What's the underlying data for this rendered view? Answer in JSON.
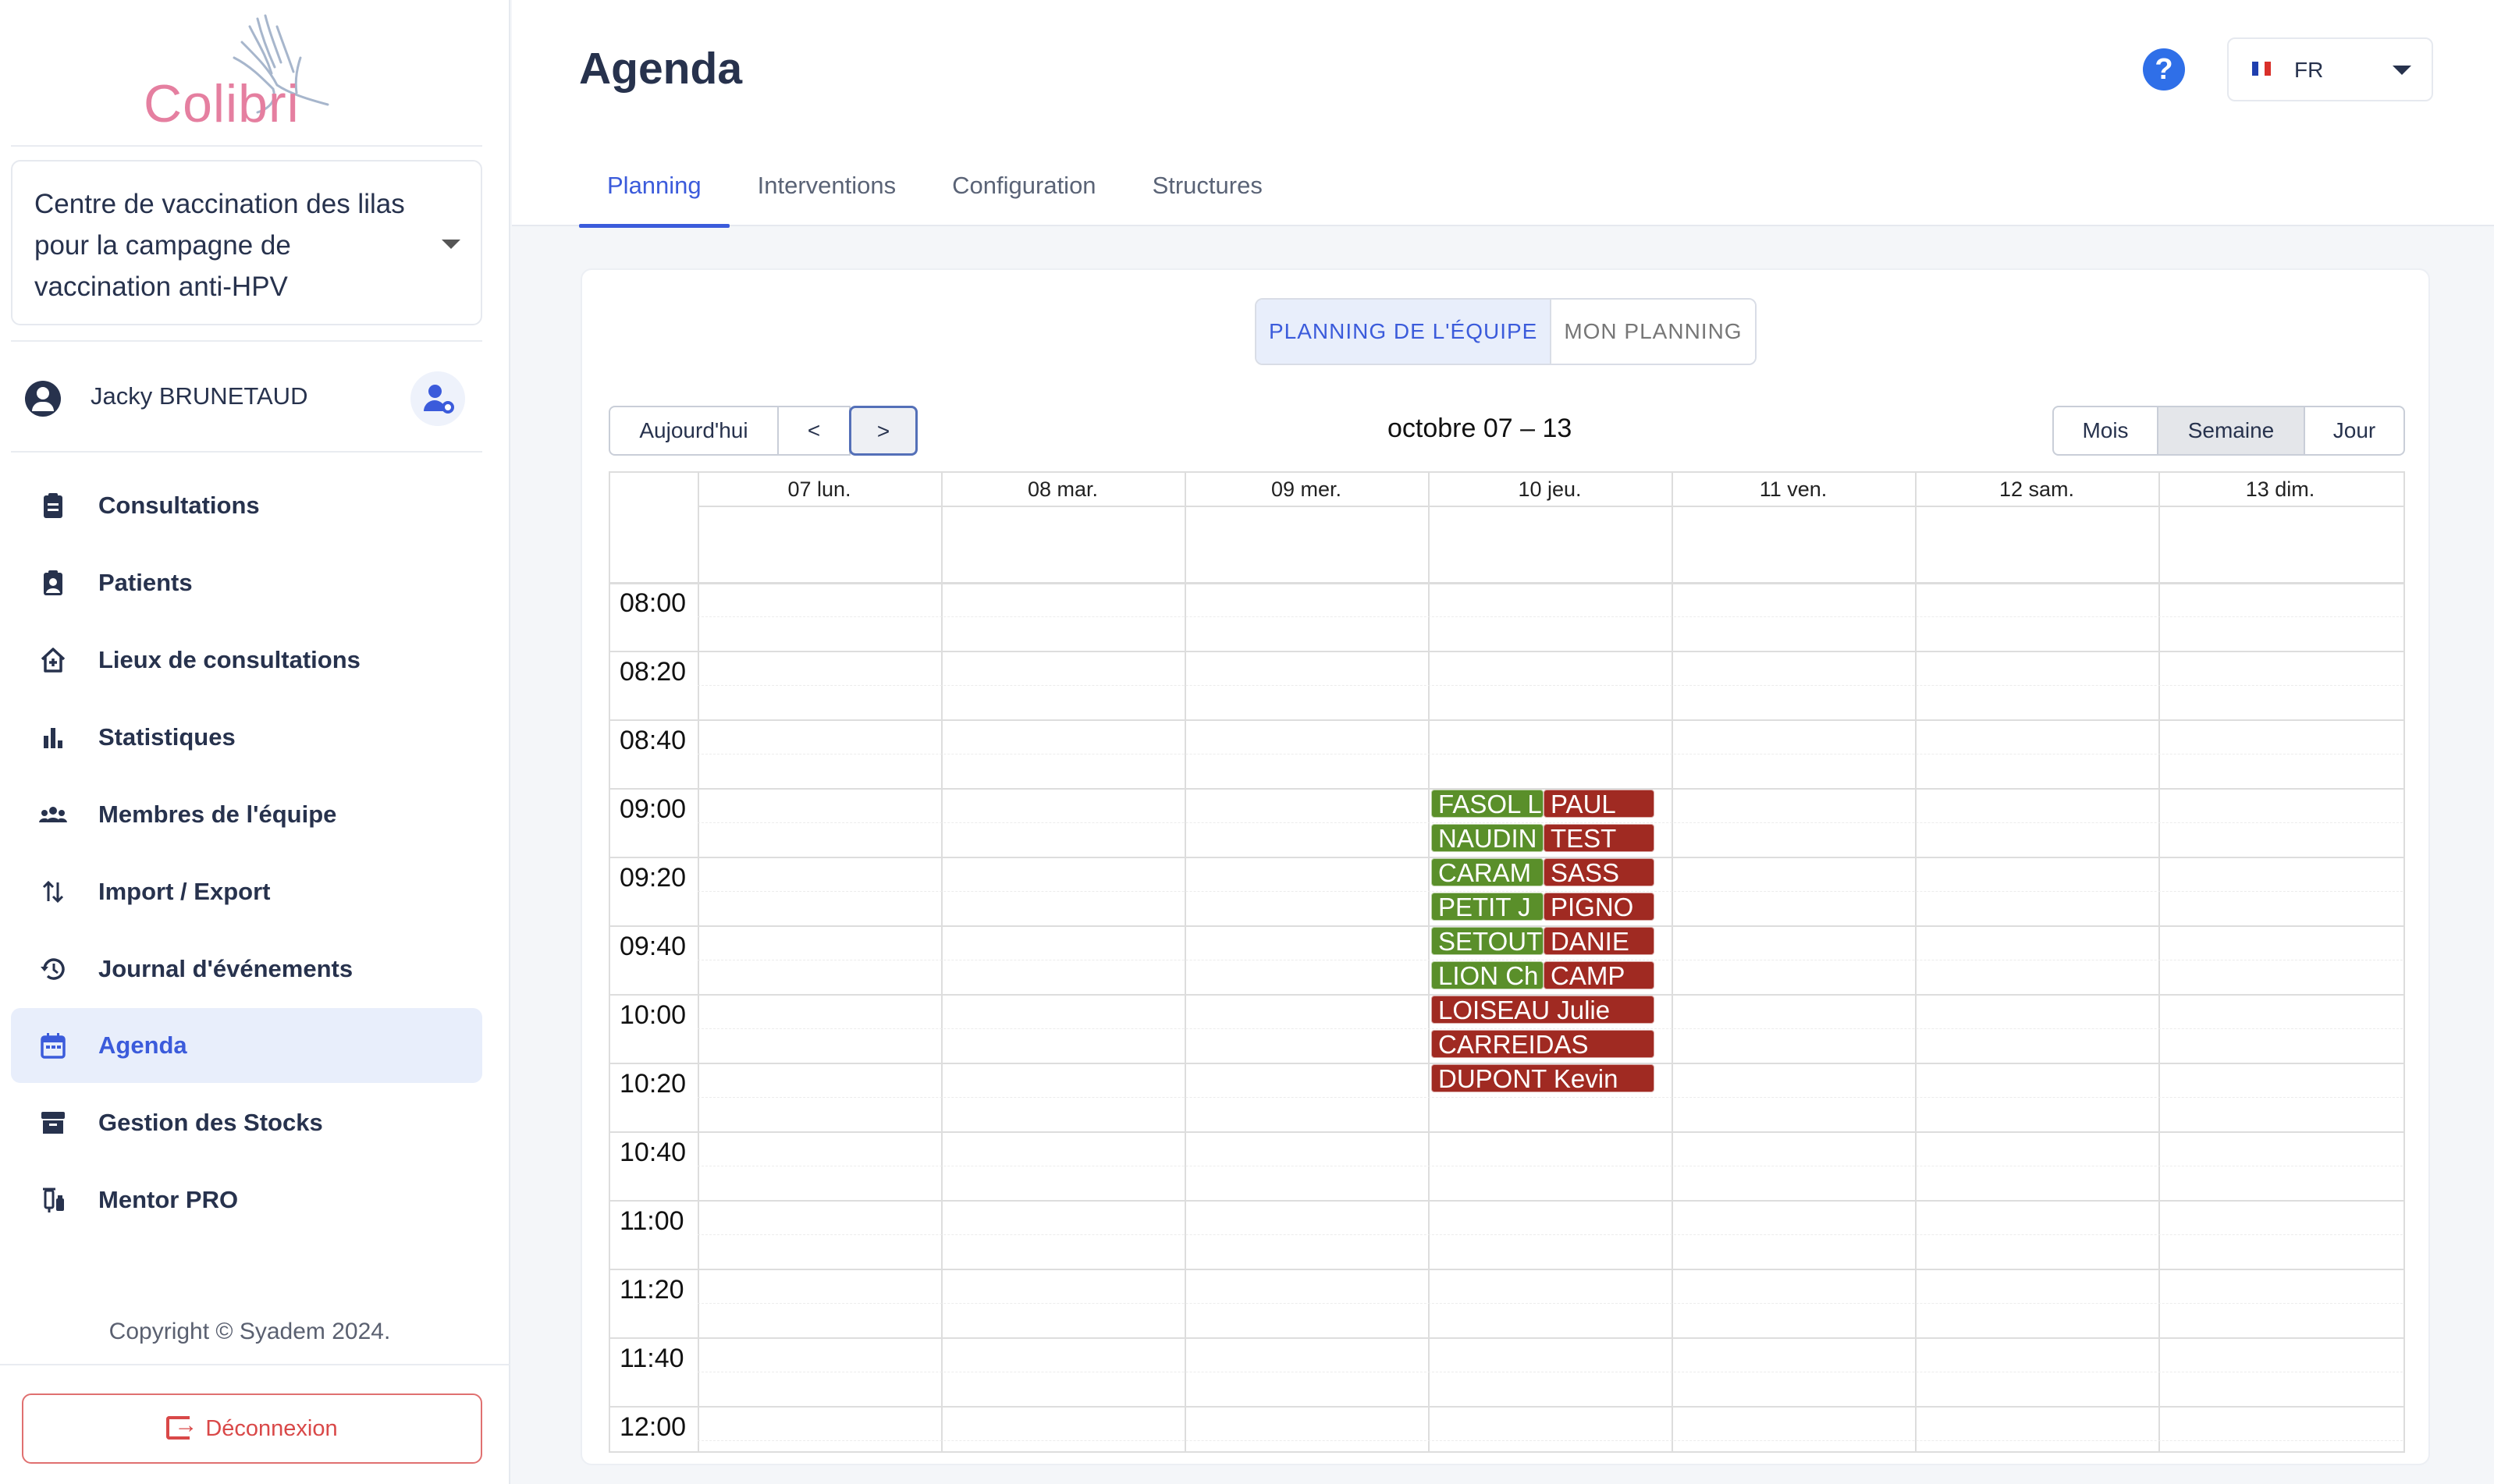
{
  "app": {
    "logo_text": "Colibri"
  },
  "sidebar": {
    "structure": "Centre de vaccination des lilas pour la campagne de vaccination anti-HPV",
    "user_name": "Jacky BRUNETAUD",
    "nav": [
      {
        "label": "Consultations",
        "icon": "clipboard-icon",
        "active": false
      },
      {
        "label": "Patients",
        "icon": "patient-badge-icon",
        "active": false
      },
      {
        "label": "Lieux de consultations",
        "icon": "home-plus-icon",
        "active": false
      },
      {
        "label": "Statistiques",
        "icon": "bar-chart-icon",
        "active": false
      },
      {
        "label": "Membres de l'équipe",
        "icon": "group-icon",
        "active": false
      },
      {
        "label": "Import / Export",
        "icon": "swap-vertical-icon",
        "active": false
      },
      {
        "label": "Journal d'événements",
        "icon": "history-icon",
        "active": false
      },
      {
        "label": "Agenda",
        "icon": "calendar-icon",
        "active": true
      },
      {
        "label": "Gestion des Stocks",
        "icon": "archive-icon",
        "active": false
      },
      {
        "label": "Mentor PRO",
        "icon": "vaccine-icon",
        "active": false
      }
    ],
    "copyright": "Copyright © Syadem 2024.",
    "logout_label": "Déconnexion"
  },
  "header": {
    "title": "Agenda",
    "language": "FR",
    "tabs": [
      {
        "label": "Planning",
        "active": true
      },
      {
        "label": "Interventions",
        "active": false
      },
      {
        "label": "Configuration",
        "active": false
      },
      {
        "label": "Structures",
        "active": false
      }
    ]
  },
  "calendar": {
    "view_toggle": [
      {
        "label": "PLANNING DE L'ÉQUIPE",
        "active": true
      },
      {
        "label": "MON PLANNING",
        "active": false
      }
    ],
    "nav_buttons": {
      "today": "Aujourd'hui",
      "prev": "<",
      "next": ">"
    },
    "range_title": "octobre 07 – 13",
    "views": [
      {
        "label": "Mois",
        "active": false
      },
      {
        "label": "Semaine",
        "active": true
      },
      {
        "label": "Jour",
        "active": false
      }
    ],
    "days": [
      "07 lun.",
      "08 mar.",
      "09 mer.",
      "10 jeu.",
      "11 ven.",
      "12 sam.",
      "13 dim."
    ],
    "times": [
      "08:00",
      "08:20",
      "08:40",
      "09:00",
      "09:20",
      "09:40",
      "10:00",
      "10:20",
      "10:40",
      "11:00",
      "11:20",
      "11:40",
      "12:00"
    ],
    "colors": {
      "green": "#5a8f2a",
      "red": "#a02a22"
    },
    "events": [
      {
        "label": "FASOL L",
        "day": 3,
        "slot": 0,
        "lane": "left",
        "color": "green"
      },
      {
        "label": "NAUDIN",
        "day": 3,
        "slot": 1,
        "lane": "left",
        "color": "green"
      },
      {
        "label": "CARAM",
        "day": 3,
        "slot": 2,
        "lane": "left",
        "color": "green"
      },
      {
        "label": "PETIT J",
        "day": 3,
        "slot": 3,
        "lane": "left",
        "color": "green"
      },
      {
        "label": "SETOUT",
        "day": 3,
        "slot": 4,
        "lane": "left",
        "color": "green"
      },
      {
        "label": "LION Ch",
        "day": 3,
        "slot": 5,
        "lane": "left",
        "color": "green"
      },
      {
        "label": "PAUL",
        "day": 3,
        "slot": 0,
        "lane": "right",
        "color": "red"
      },
      {
        "label": "TEST",
        "day": 3,
        "slot": 1,
        "lane": "right",
        "color": "red"
      },
      {
        "label": "SASS",
        "day": 3,
        "slot": 2,
        "lane": "right",
        "color": "red"
      },
      {
        "label": "PIGNO",
        "day": 3,
        "slot": 3,
        "lane": "right",
        "color": "red"
      },
      {
        "label": "DANIE",
        "day": 3,
        "slot": 4,
        "lane": "right",
        "color": "red"
      },
      {
        "label": "CAMP",
        "day": 3,
        "slot": 5,
        "lane": "right",
        "color": "red"
      },
      {
        "label": "LOISEAU Julie",
        "day": 3,
        "slot": 6,
        "lane": "full",
        "color": "red"
      },
      {
        "label": "CARREIDAS",
        "day": 3,
        "slot": 7,
        "lane": "full",
        "color": "red"
      },
      {
        "label": "DUPONT Kevin",
        "day": 3,
        "slot": 8,
        "lane": "full",
        "color": "red"
      }
    ]
  }
}
